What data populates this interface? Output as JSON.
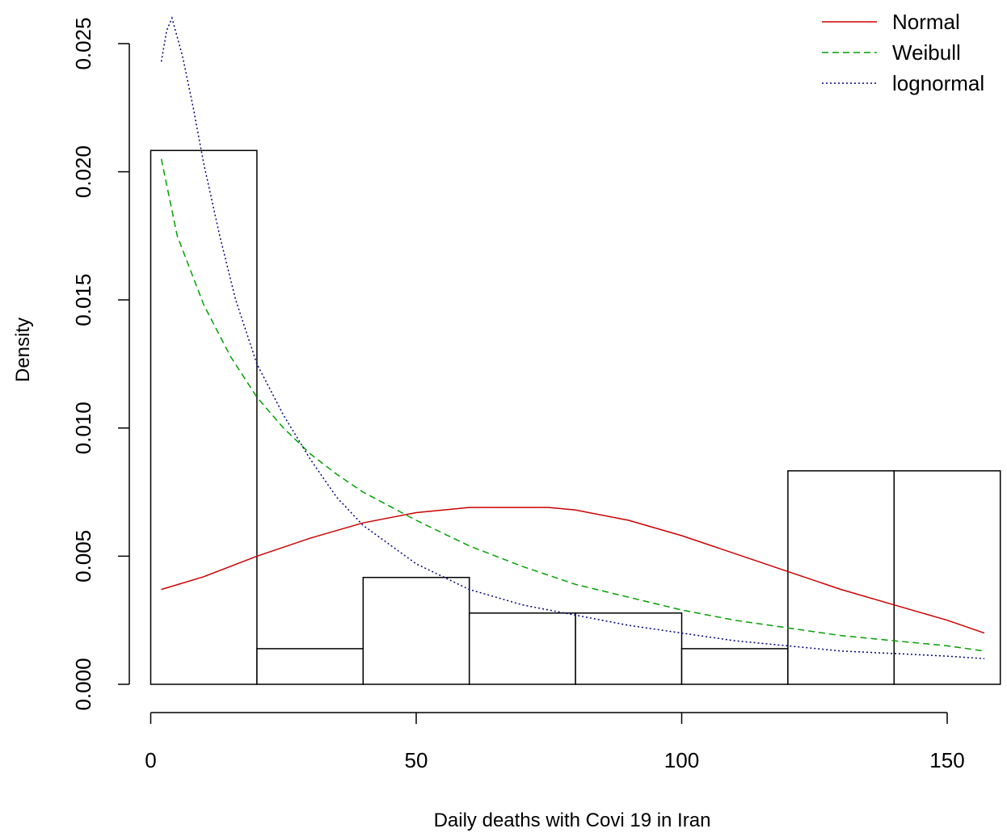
{
  "chart_data": {
    "type": "bar",
    "title": "",
    "xlabel": "Daily deaths with Covi 19 in Iran",
    "ylabel": "Density",
    "xlim": [
      0,
      160
    ],
    "ylim": [
      0,
      0.026
    ],
    "x_ticks": [
      0,
      50,
      100,
      150
    ],
    "x_tick_labels": [
      "0",
      "50",
      "100",
      "150"
    ],
    "y_ticks": [
      0,
      0.005,
      0.01,
      0.015,
      0.02,
      0.025
    ],
    "y_tick_labels": [
      "0.000",
      "0.005",
      "0.010",
      "0.015",
      "0.020",
      "0.025"
    ],
    "grid": false,
    "legend_position": "top-right",
    "histogram": {
      "bin_edges": [
        0,
        20,
        40,
        60,
        80,
        100,
        120,
        140,
        160
      ],
      "density": [
        0.02083,
        0.00139,
        0.00417,
        0.00278,
        0.00278,
        0.00139,
        0.00833,
        0.00833
      ],
      "fill": "#ffffff",
      "stroke": "#000000"
    },
    "series": [
      {
        "name": "Normal",
        "color": "#cc0000",
        "dash": "solid",
        "x": [
          2,
          10,
          20,
          30,
          40,
          50,
          60,
          70,
          75,
          80,
          90,
          100,
          110,
          120,
          130,
          140,
          150,
          157
        ],
        "y": [
          0.0037,
          0.0042,
          0.005,
          0.0057,
          0.0063,
          0.0067,
          0.0069,
          0.0069,
          0.0069,
          0.0068,
          0.0064,
          0.0058,
          0.0051,
          0.0044,
          0.0037,
          0.0031,
          0.0025,
          0.002
        ]
      },
      {
        "name": "Weibull",
        "color": "#00a000",
        "dash": "dashed",
        "x": [
          2,
          5,
          10,
          15,
          20,
          25,
          30,
          35,
          40,
          50,
          60,
          70,
          80,
          90,
          100,
          110,
          120,
          130,
          140,
          150,
          157
        ],
        "y": [
          0.0205,
          0.0175,
          0.0148,
          0.0128,
          0.0112,
          0.01,
          0.009,
          0.0082,
          0.0075,
          0.0064,
          0.0054,
          0.0046,
          0.0039,
          0.0034,
          0.0029,
          0.0025,
          0.0022,
          0.0019,
          0.0017,
          0.0015,
          0.0013
        ]
      },
      {
        "name": "lognormal",
        "color": "#000080",
        "dash": "dotted",
        "x": [
          2,
          3,
          4,
          6,
          8,
          10,
          13,
          16,
          20,
          25,
          30,
          35,
          40,
          50,
          60,
          70,
          80,
          90,
          100,
          110,
          120,
          130,
          140,
          150,
          157
        ],
        "y": [
          0.0243,
          0.0255,
          0.026,
          0.0245,
          0.0225,
          0.0203,
          0.0175,
          0.015,
          0.0125,
          0.0105,
          0.0088,
          0.0073,
          0.0062,
          0.0047,
          0.0037,
          0.0031,
          0.0027,
          0.0023,
          0.002,
          0.0017,
          0.0015,
          0.0013,
          0.0012,
          0.0011,
          0.001
        ]
      }
    ]
  }
}
